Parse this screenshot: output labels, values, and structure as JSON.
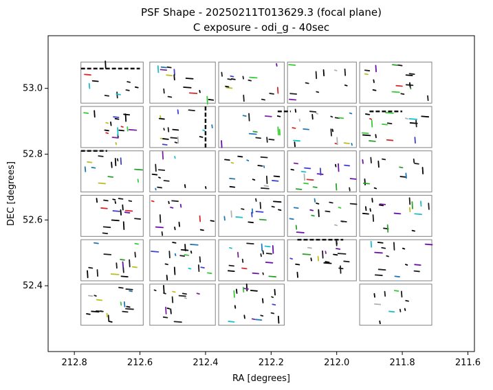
{
  "chart_data": {
    "type": "scatter",
    "title": "PSF Shape - 20250211T013629.3 (focal plane)",
    "subtitle": "C exposure - odi_g - 40sec",
    "xlabel": "RA [degrees]",
    "ylabel": "DEC [degrees]",
    "xlim": [
      212.88,
      211.58
    ],
    "ylim": [
      52.2,
      53.16
    ],
    "x_inverted": true,
    "xticks": [
      212.8,
      212.6,
      212.4,
      212.2,
      212.0,
      211.8,
      211.6
    ],
    "xtick_labels": [
      "212.8",
      "212.6",
      "212.4",
      "212.2",
      "212.0",
      "211.8",
      "211.6"
    ],
    "yticks": [
      52.4,
      52.6,
      52.8,
      53.0
    ],
    "ytick_labels": [
      "52.4",
      "52.6",
      "52.8",
      "53.0"
    ],
    "grid": false,
    "cell_outline_color": "#808080",
    "colors": [
      "#000000",
      "#1a1a1a",
      "#2ca02c",
      "#33cc33",
      "#17becf",
      "#1f77b4",
      "#7b1fa2",
      "#6a0dad",
      "#3f3fcf",
      "#d62728",
      "#bcbd22",
      "#b0b0b0"
    ],
    "cells": [
      {
        "ra": [
          212.78,
          212.59
        ],
        "dec": [
          52.955,
          53.08
        ]
      },
      {
        "ra": [
          212.57,
          212.37
        ],
        "dec": [
          52.955,
          53.08
        ]
      },
      {
        "ra": [
          212.36,
          212.16
        ],
        "dec": [
          52.955,
          53.08
        ]
      },
      {
        "ra": [
          212.15,
          211.94
        ],
        "dec": [
          52.955,
          53.08
        ]
      },
      {
        "ra": [
          211.93,
          211.71
        ],
        "dec": [
          52.955,
          53.08
        ]
      },
      {
        "ra": [
          212.78,
          212.59
        ],
        "dec": [
          52.82,
          52.945
        ]
      },
      {
        "ra": [
          212.57,
          212.37
        ],
        "dec": [
          52.82,
          52.945
        ]
      },
      {
        "ra": [
          212.36,
          212.16
        ],
        "dec": [
          52.82,
          52.945
        ]
      },
      {
        "ra": [
          212.15,
          211.94
        ],
        "dec": [
          52.82,
          52.945
        ]
      },
      {
        "ra": [
          211.93,
          211.71
        ],
        "dec": [
          52.82,
          52.945
        ]
      },
      {
        "ra": [
          212.78,
          212.59
        ],
        "dec": [
          52.685,
          52.81
        ]
      },
      {
        "ra": [
          212.57,
          212.37
        ],
        "dec": [
          52.685,
          52.81
        ]
      },
      {
        "ra": [
          212.36,
          212.16
        ],
        "dec": [
          52.685,
          52.81
        ]
      },
      {
        "ra": [
          212.15,
          211.94
        ],
        "dec": [
          52.685,
          52.81
        ]
      },
      {
        "ra": [
          211.93,
          211.71
        ],
        "dec": [
          52.685,
          52.81
        ]
      },
      {
        "ra": [
          212.78,
          212.59
        ],
        "dec": [
          52.55,
          52.675
        ]
      },
      {
        "ra": [
          212.57,
          212.37
        ],
        "dec": [
          52.55,
          52.675
        ]
      },
      {
        "ra": [
          212.36,
          212.16
        ],
        "dec": [
          52.55,
          52.675
        ]
      },
      {
        "ra": [
          212.15,
          211.94
        ],
        "dec": [
          52.55,
          52.675
        ]
      },
      {
        "ra": [
          211.93,
          211.71
        ],
        "dec": [
          52.55,
          52.675
        ]
      },
      {
        "ra": [
          212.78,
          212.59
        ],
        "dec": [
          52.415,
          52.54
        ]
      },
      {
        "ra": [
          212.57,
          212.37
        ],
        "dec": [
          52.415,
          52.54
        ]
      },
      {
        "ra": [
          212.36,
          212.16
        ],
        "dec": [
          52.415,
          52.54
        ]
      },
      {
        "ra": [
          212.15,
          211.94
        ],
        "dec": [
          52.415,
          52.54
        ]
      },
      {
        "ra": [
          211.93,
          211.71
        ],
        "dec": [
          52.415,
          52.54
        ]
      },
      {
        "ra": [
          212.78,
          212.59
        ],
        "dec": [
          52.28,
          52.405
        ]
      },
      {
        "ra": [
          212.57,
          212.37
        ],
        "dec": [
          52.28,
          52.405
        ]
      },
      {
        "ra": [
          212.36,
          212.16
        ],
        "dec": [
          52.28,
          52.405
        ]
      },
      {
        "ra": [
          211.93,
          211.71
        ],
        "dec": [
          52.28,
          52.405
        ]
      }
    ]
  }
}
